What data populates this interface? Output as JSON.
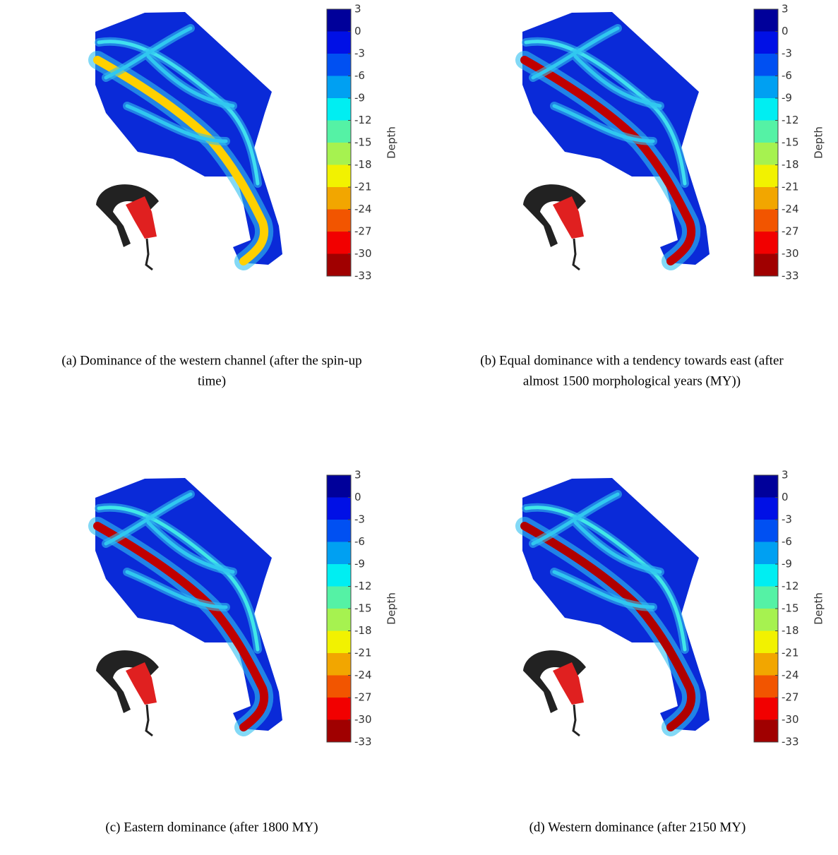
{
  "colorbar": {
    "label": "Depth",
    "lim": [
      -33,
      3
    ],
    "ticks": [
      3,
      0,
      -3,
      -6,
      -9,
      -12,
      -15,
      -18,
      -21,
      -24,
      -27,
      -30,
      -33
    ],
    "colors": [
      "#00009a",
      "#0010e6",
      "#0050f2",
      "#00a0f2",
      "#00eef2",
      "#55f2a5",
      "#a6f250",
      "#f2f200",
      "#f2a600",
      "#f25500",
      "#f20000",
      "#a00000"
    ]
  },
  "panels": [
    {
      "caption": [
        "(a) Dominance of the western channel (after the spin-up",
        "time)"
      ]
    },
    {
      "caption": [
        "(b) Equal dominance with a tendency towards east (after",
        "almost 1500 morphological years (MY))"
      ]
    },
    {
      "caption": [
        "(c) Eastern dominance (after 1800 MY)"
      ]
    },
    {
      "caption": [
        "(d) Western dominance (after 2150 MY)"
      ]
    }
  ]
}
